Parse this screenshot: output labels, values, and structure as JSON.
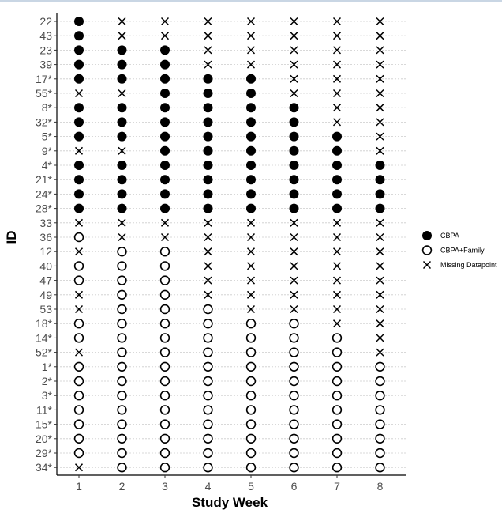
{
  "chart_data": {
    "type": "scatter",
    "title": "",
    "xlabel": "Study Week",
    "ylabel": "ID",
    "x": [
      "1",
      "2",
      "3",
      "4",
      "5",
      "6",
      "7",
      "8"
    ],
    "ids": [
      "22",
      "43",
      "23",
      "39",
      "17*",
      "55*",
      "8*",
      "32*",
      "5*",
      "9*",
      "4*",
      "21*",
      "24*",
      "28*",
      "33",
      "36",
      "12",
      "40",
      "47",
      "49",
      "53",
      "18*",
      "14*",
      "52*",
      "1*",
      "2*",
      "3*",
      "11*",
      "15*",
      "20*",
      "29*",
      "34*"
    ],
    "grid": "horizontal dotted",
    "legend_position": "right",
    "legend": [
      {
        "key": "C",
        "label": "CBPA",
        "marker": "filled-circle"
      },
      {
        "key": "F",
        "label": "CBPA+Family",
        "marker": "open-circle"
      },
      {
        "key": "X",
        "label": "Missing Datapoint",
        "marker": "cross"
      }
    ],
    "status_rows": [
      "CXXXXXXX",
      "CXXXXXXX",
      "CCCXXXXX",
      "CCCXXXXX",
      "CCCCCXXX",
      "XXCCCXXX",
      "CCCCCCXX",
      "CCCCCCXX",
      "CCCCCCCX",
      "XXCCCCCX",
      "CCCCCCCC",
      "CCCCCCCC",
      "CCCCCCCC",
      "CCCCCCCC",
      "XXXXXXXX",
      "FXXXXXXX",
      "XFFXXXXX",
      "FFFXXXXX",
      "FFFXXXXX",
      "XFFXXXXX",
      "XFFFXXXX",
      "FFFFFFXX",
      "FFFFFFFX",
      "XFFFFFFX",
      "FFFFFFFF",
      "FFFFFFFF",
      "FFFFFFFF",
      "FFFFFFFF",
      "FFFFFFFF",
      "FFFFFFFF",
      "FFFFFFFF",
      "XFFFFFFF"
    ]
  }
}
